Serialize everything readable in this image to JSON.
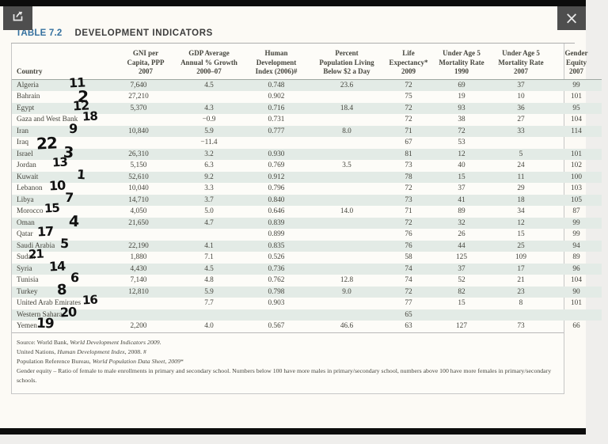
{
  "viewer": {
    "icons": {
      "share": "export-arrow",
      "close": "×"
    }
  },
  "table": {
    "label": "TABLE 7.2",
    "title": "DEVELOPMENT INDICATORS",
    "columns": [
      "Country",
      "GNI per\nCapita, PPP\n2007",
      "GDP Average\nAnnual % Growth\n2000–07",
      "Human\nDevelopment\nIndex (2006)#",
      "Percent\nPopulation Living\nBelow $2 a Day",
      "Life\nExpectancy*\n2009",
      "Under Age 5\nMortality Rate\n1990",
      "Under Age 5\nMortality Rate\n2007",
      "Gender\nEquity\n2007"
    ],
    "rows": [
      {
        "country": "Algeria",
        "annotation": "11",
        "values": [
          "7,640",
          "4.5",
          "0.748",
          "23.6",
          "72",
          "69",
          "37",
          "99"
        ]
      },
      {
        "country": "Bahrain",
        "annotation": "2",
        "values": [
          "27,210",
          "",
          "0.902",
          "",
          "75",
          "19",
          "10",
          "101"
        ]
      },
      {
        "country": "Egypt",
        "annotation": "12",
        "values": [
          "5,370",
          "4.3",
          "0.716",
          "18.4",
          "72",
          "93",
          "36",
          "95"
        ]
      },
      {
        "country": "Gaza and West Bank",
        "annotation": "18",
        "values": [
          "",
          "−0.9",
          "0.731",
          "",
          "72",
          "38",
          "27",
          "104"
        ]
      },
      {
        "country": "Iran",
        "annotation": "9",
        "values": [
          "10,840",
          "5.9",
          "0.777",
          "8.0",
          "71",
          "72",
          "33",
          "114"
        ]
      },
      {
        "country": "Iraq",
        "annotation": "22",
        "values": [
          "",
          "−11.4",
          "",
          "",
          "67",
          "53",
          "",
          ""
        ]
      },
      {
        "country": "Israel",
        "annotation": "3",
        "values": [
          "26,310",
          "3.2",
          "0.930",
          "",
          "81",
          "12",
          "5",
          "101"
        ]
      },
      {
        "country": "Jordan",
        "annotation": "13",
        "values": [
          "5,150",
          "6.3",
          "0.769",
          "3.5",
          "73",
          "40",
          "24",
          "102"
        ]
      },
      {
        "country": "Kuwait",
        "annotation": "1",
        "values": [
          "52,610",
          "9.2",
          "0.912",
          "",
          "78",
          "15",
          "11",
          "100"
        ]
      },
      {
        "country": "Lebanon",
        "annotation": "10",
        "values": [
          "10,040",
          "3.3",
          "0.796",
          "",
          "72",
          "37",
          "29",
          "103"
        ]
      },
      {
        "country": "Libya",
        "annotation": "7",
        "values": [
          "14,710",
          "3.7",
          "0.840",
          "",
          "73",
          "41",
          "18",
          "105"
        ]
      },
      {
        "country": "Morocco",
        "annotation": "15",
        "values": [
          "4,050",
          "5.0",
          "0.646",
          "14.0",
          "71",
          "89",
          "34",
          "87"
        ]
      },
      {
        "country": "Oman",
        "annotation": "4",
        "values": [
          "21,650",
          "4.7",
          "0.839",
          "",
          "72",
          "32",
          "12",
          "99"
        ]
      },
      {
        "country": "Qatar",
        "annotation": "17",
        "values": [
          "",
          "",
          "0.899",
          "",
          "76",
          "26",
          "15",
          "99"
        ]
      },
      {
        "country": "Saudi Arabia",
        "annotation": "5",
        "values": [
          "22,190",
          "4.1",
          "0.835",
          "",
          "76",
          "44",
          "25",
          "94"
        ]
      },
      {
        "country": "Sudan",
        "annotation": "21",
        "values": [
          "1,880",
          "7.1",
          "0.526",
          "",
          "58",
          "125",
          "109",
          "89"
        ]
      },
      {
        "country": "Syria",
        "annotation": "14",
        "values": [
          "4,430",
          "4.5",
          "0.736",
          "",
          "74",
          "37",
          "17",
          "96"
        ]
      },
      {
        "country": "Tunisia",
        "annotation": "6",
        "values": [
          "7,140",
          "4.8",
          "0.762",
          "12.8",
          "74",
          "52",
          "21",
          "104"
        ]
      },
      {
        "country": "Turkey",
        "annotation": "8",
        "values": [
          "12,810",
          "5.9",
          "0.798",
          "9.0",
          "72",
          "82",
          "23",
          "90"
        ]
      },
      {
        "country": "United Arab Emirates",
        "annotation": "16",
        "values": [
          "",
          "7.7",
          "0.903",
          "",
          "77",
          "15",
          "8",
          "101"
        ]
      },
      {
        "country": "Western Sahara",
        "annotation": "20",
        "values": [
          "",
          "",
          "",
          "",
          "65",
          "",
          "",
          ""
        ]
      },
      {
        "country": "Yemen",
        "annotation": "19",
        "values": [
          "2,200",
          "4.0",
          "0.567",
          "46.6",
          "63",
          "127",
          "73",
          "66"
        ]
      }
    ],
    "footnotes": [
      [
        {
          "t": "Source: World Bank, "
        },
        {
          "t": "World Development Indicators 2009",
          "i": true
        },
        {
          "t": "."
        }
      ],
      [
        {
          "t": "United Nations, "
        },
        {
          "t": "Human Development Index",
          "i": true
        },
        {
          "t": ", 2008. #"
        }
      ],
      [
        {
          "t": "Population Reference Bureau, "
        },
        {
          "t": "World Population Data Sheet, 2009",
          "i": true
        },
        {
          "t": "*"
        }
      ],
      [
        {
          "t": "Gender equity – Ratio of female to male enrollments in primary and secondary school. Numbers below 100 have more males in primary/secondary school, numbers above 100 have more females in primary/secondary schools."
        }
      ]
    ]
  },
  "colors": {
    "accent_blue": "#35719f",
    "row_stripe": "#e3ebe6",
    "chrome_dark": "#4e4e4e",
    "bar_black": "#0c0c0c"
  }
}
